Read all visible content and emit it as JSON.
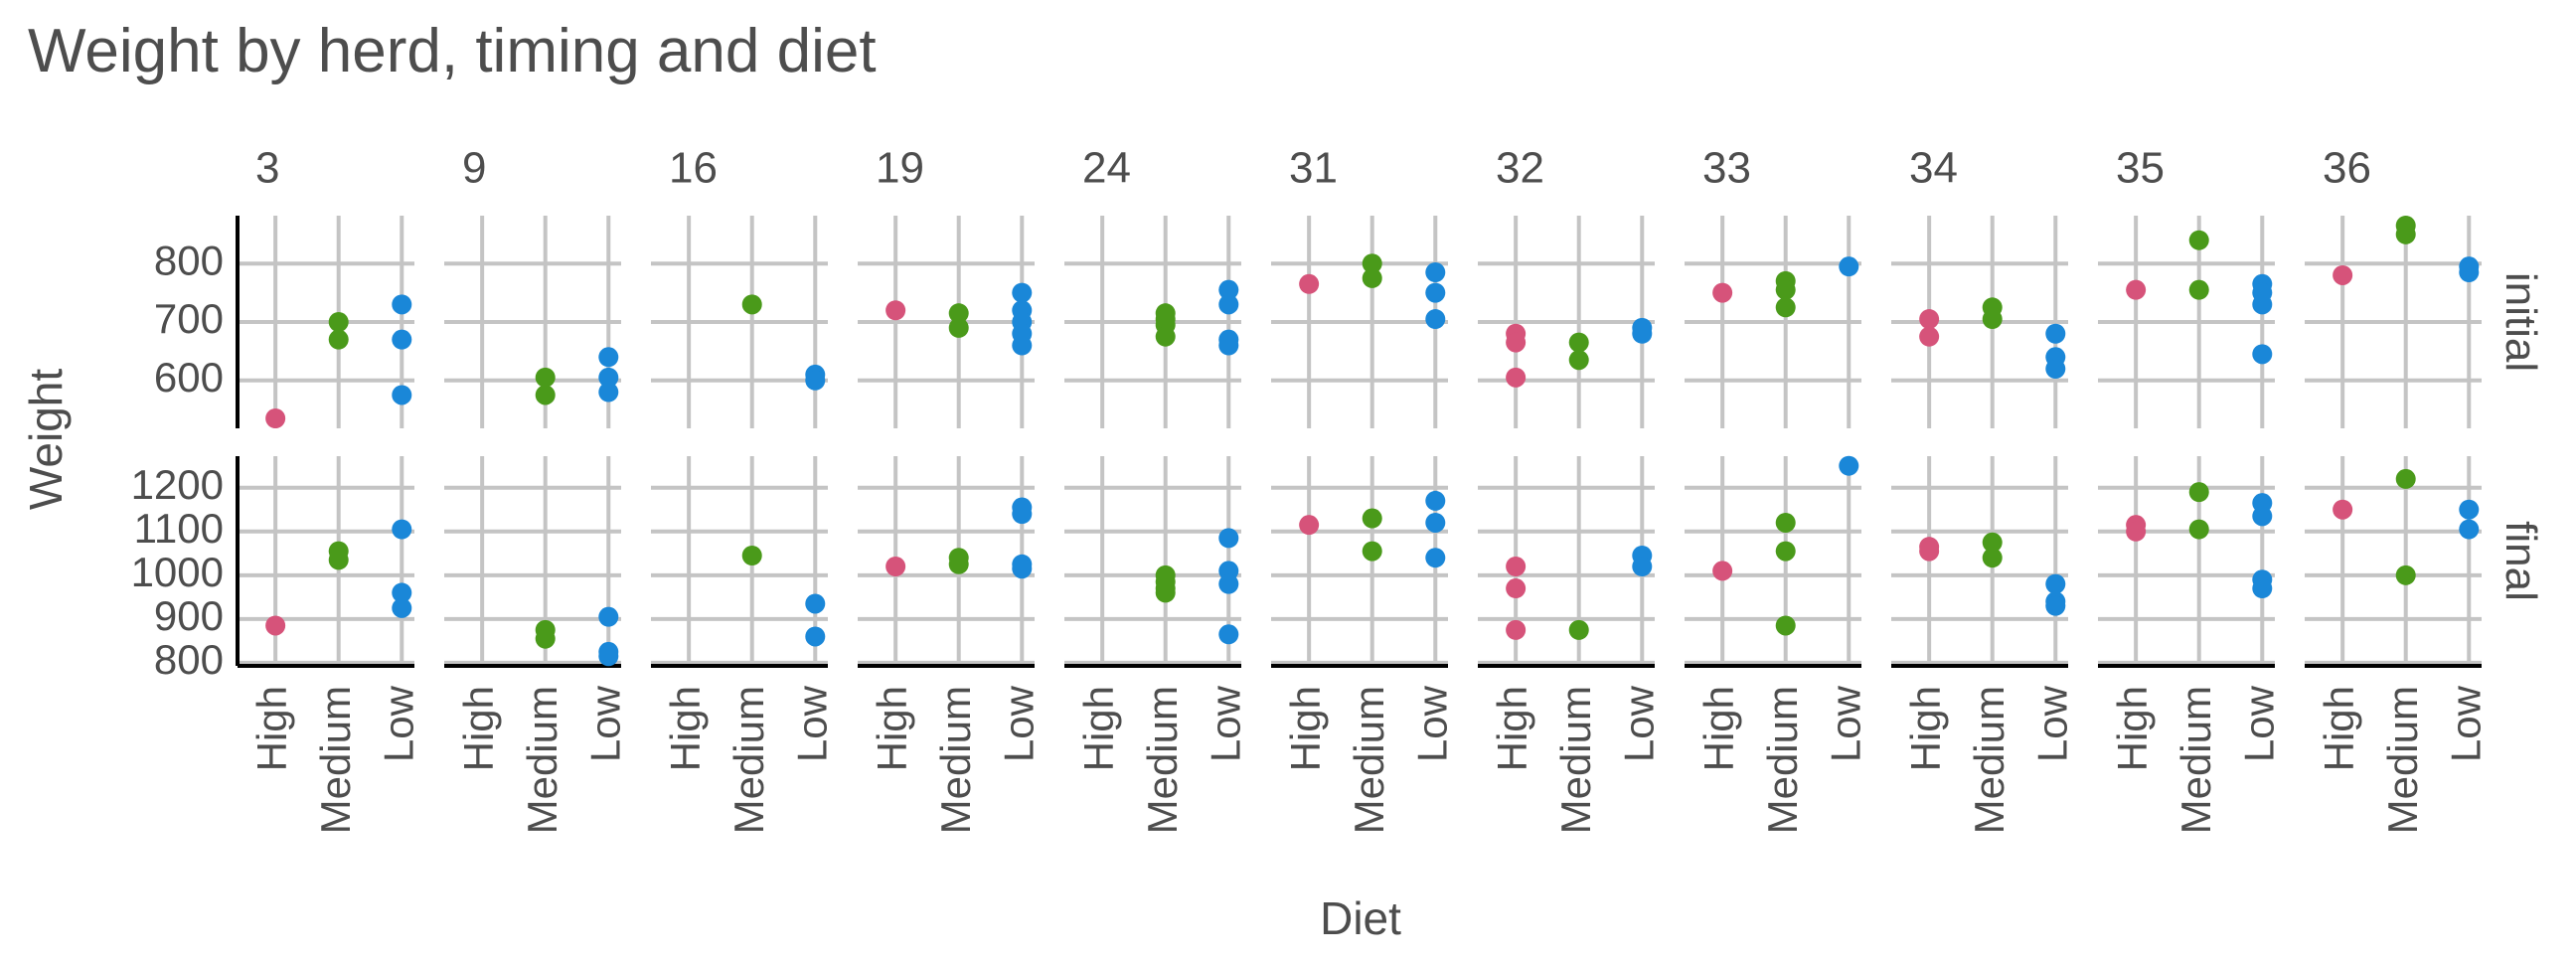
{
  "chart_data": {
    "type": "strip",
    "title": "Weight by herd, timing and diet",
    "x_label": "Diet",
    "y_label": "Weight",
    "categories": [
      "High",
      "Medium",
      "Low"
    ],
    "colors": [
      "#d6537a",
      "#4a9a1a",
      "#1a87d8"
    ],
    "herds": [
      "3",
      "9",
      "16",
      "19",
      "24",
      "31",
      "32",
      "33",
      "34",
      "35",
      "36"
    ],
    "grid": true,
    "rows": [
      {
        "name": "initial",
        "ylim": [
          518,
          882
        ],
        "yticks": [
          600,
          700,
          800
        ],
        "values": [
          [
            [
              535
            ],
            [
              700,
              670
            ],
            [
              730,
              670,
              575
            ]
          ],
          [
            [],
            [
              605,
              575
            ],
            [
              640,
              605,
              580
            ]
          ],
          [
            [],
            [
              730
            ],
            [
              610,
              600
            ]
          ],
          [
            [
              720
            ],
            [
              715,
              690
            ],
            [
              750,
              720,
              700,
              680,
              660
            ]
          ],
          [
            [],
            [
              715,
              705,
              695,
              675
            ],
            [
              755,
              730,
              670,
              660
            ]
          ],
          [
            [
              765
            ],
            [
              800,
              775
            ],
            [
              785,
              750,
              705
            ]
          ],
          [
            [
              680,
              665,
              605
            ],
            [
              665,
              635
            ],
            [
              690,
              680
            ]
          ],
          [
            [
              750
            ],
            [
              770,
              755,
              725
            ],
            [
              795
            ]
          ],
          [
            [
              705,
              675
            ],
            [
              725,
              705
            ],
            [
              680,
              640,
              620
            ]
          ],
          [
            [
              755
            ],
            [
              840,
              755
            ],
            [
              765,
              750,
              730,
              645
            ]
          ],
          [
            [
              780
            ],
            [
              865,
              850
            ],
            [
              795,
              785
            ]
          ]
        ]
      },
      {
        "name": "final",
        "ylim": [
          793,
          1272
        ],
        "yticks": [
          800,
          900,
          1000,
          1100,
          1200
        ],
        "values": [
          [
            [
              885
            ],
            [
              1055,
              1035
            ],
            [
              1105,
              960,
              925
            ]
          ],
          [
            [],
            [
              875,
              855
            ],
            [
              905,
              825,
              815
            ]
          ],
          [
            [],
            [
              1045
            ],
            [
              935,
              860
            ]
          ],
          [
            [
              1020
            ],
            [
              1040,
              1025
            ],
            [
              1155,
              1140,
              1025,
              1015
            ]
          ],
          [
            [],
            [
              1000,
              985,
              970,
              960
            ],
            [
              1085,
              1010,
              980,
              865
            ]
          ],
          [
            [
              1115
            ],
            [
              1130,
              1055
            ],
            [
              1170,
              1120,
              1040
            ]
          ],
          [
            [
              1020,
              970,
              875
            ],
            [
              875
            ],
            [
              1045,
              1020
            ]
          ],
          [
            [
              1010
            ],
            [
              1120,
              1055,
              885
            ],
            [
              1250
            ]
          ],
          [
            [
              1065,
              1055
            ],
            [
              1075,
              1040
            ],
            [
              980,
              940,
              930
            ]
          ],
          [
            [
              1115,
              1100
            ],
            [
              1190,
              1105
            ],
            [
              1165,
              1135,
              990,
              970
            ]
          ],
          [
            [
              1150
            ],
            [
              1220,
              1000
            ],
            [
              1150,
              1105
            ]
          ]
        ]
      }
    ]
  }
}
